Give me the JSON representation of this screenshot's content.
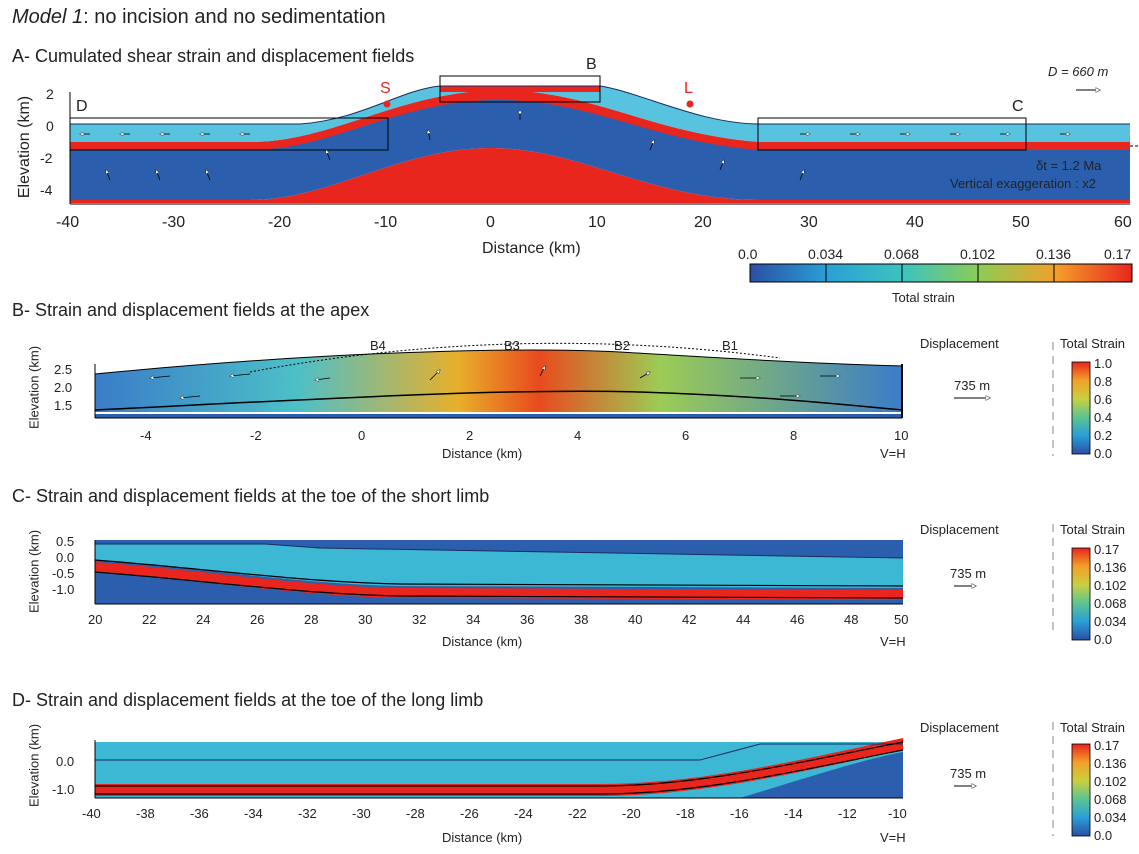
{
  "title_model": "Model 1",
  "title_rest": ": no incision and no sedimentation",
  "panel_a": {
    "heading": "A- Cumulated shear strain and displacement fields",
    "ylabel": "Elevation (km)",
    "xlabel": "Distance (km)",
    "xticks": [
      "-40",
      "-30",
      "-20",
      "-10",
      "0",
      "10",
      "20",
      "30",
      "40",
      "50",
      "60"
    ],
    "yticks": [
      "2",
      "0",
      "-2",
      "-4"
    ],
    "labels": {
      "D": "D",
      "C": "C",
      "B": "B",
      "S": "S",
      "L": "L"
    },
    "disp_label": "D = 660 m",
    "dt_label": "δt = 1.2 Ma",
    "vexag": "Vertical exaggeration : x2",
    "colorbar_ticks": [
      "0.0",
      "0.034",
      "0.068",
      "0.102",
      "0.136",
      "0.17"
    ],
    "colorbar_label": "Total strain"
  },
  "panel_b": {
    "heading": "B- Strain and displacement fields at the apex",
    "ylabel": "Elevation (km)",
    "xlabel": "Distance (km)",
    "xticks": [
      "-4",
      "-2",
      "0",
      "2",
      "4",
      "6",
      "8",
      "10"
    ],
    "yticks": [
      "2.5",
      "2.0",
      "1.5"
    ],
    "sublabels": [
      "B4",
      "B3",
      "B2",
      "B1"
    ],
    "vh": "V=H",
    "disp_title": "Displacement",
    "disp_value": "735 m",
    "cb_title": "Total Strain",
    "cb_ticks": [
      "1.0",
      "0.8",
      "0.6",
      "0.4",
      "0.2",
      "0.0"
    ]
  },
  "panel_c": {
    "heading": "C- Strain and displacement fields at the toe of the short limb",
    "ylabel": "Elevation (km)",
    "xlabel": "Distance (km)",
    "xticks": [
      "20",
      "22",
      "24",
      "26",
      "28",
      "30",
      "32",
      "34",
      "36",
      "38",
      "40",
      "42",
      "44",
      "46",
      "48",
      "50"
    ],
    "yticks": [
      "0.5",
      "0.0",
      "-0.5",
      "-1.0"
    ],
    "vh": "V=H",
    "disp_title": "Displacement",
    "disp_value": "735 m",
    "cb_title": "Total Strain",
    "cb_ticks": [
      "0.17",
      "0.136",
      "0.102",
      "0.068",
      "0.034",
      "0.0"
    ]
  },
  "panel_d": {
    "heading": "D- Strain and displacement fields at the toe of the long limb",
    "ylabel": "Elevation (km)",
    "xlabel": "Distance (km)",
    "xticks": [
      "-40",
      "-38",
      "-36",
      "-34",
      "-32",
      "-30",
      "-28",
      "-26",
      "-24",
      "-22",
      "-20",
      "-18",
      "-16",
      "-14",
      "-12",
      "-10"
    ],
    "yticks": [
      "0.0",
      "-1.0"
    ],
    "vh": "V=H",
    "disp_title": "Displacement",
    "disp_value": "735 m",
    "cb_title": "Total Strain",
    "cb_ticks": [
      "0.17",
      "0.136",
      "0.102",
      "0.068",
      "0.034",
      "0.0"
    ]
  },
  "colors": {
    "deep_blue": "#2b5fae",
    "mid_blue": "#2a9fd6",
    "cyan": "#3cc3d0",
    "green": "#7ec86a",
    "yellow": "#e4d23e",
    "orange": "#f39a2a",
    "red": "#e8261e"
  }
}
